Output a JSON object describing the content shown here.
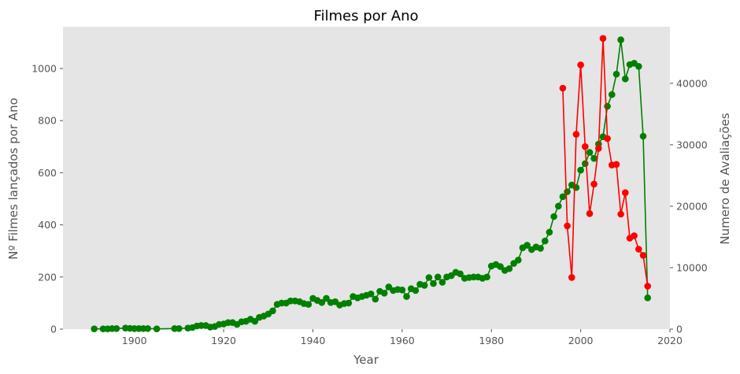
{
  "chart_data": {
    "type": "line",
    "title": "Filmes por Ano",
    "xlabel": "Year",
    "ylabel_left": "Nº Filmes lançados por Ano",
    "ylabel_right": "Numero de Avaliações",
    "xlim": [
      1884,
      2020
    ],
    "ylim_left": [
      0,
      1160
    ],
    "ylim_right": [
      0,
      49200
    ],
    "x_ticks": [
      1900,
      1920,
      1940,
      1960,
      1980,
      2000,
      2020
    ],
    "y_left_ticks": [
      0,
      200,
      400,
      600,
      800,
      1000
    ],
    "y_right_ticks": [
      0,
      10000,
      20000,
      30000,
      40000
    ],
    "grid": false,
    "background": "#e5e5e5",
    "series": [
      {
        "axis": "left",
        "color": "#008000",
        "points": [
          [
            1891,
            1
          ],
          [
            1893,
            1
          ],
          [
            1894,
            1
          ],
          [
            1895,
            2
          ],
          [
            1896,
            2
          ],
          [
            1898,
            4
          ],
          [
            1899,
            3
          ],
          [
            1900,
            2
          ],
          [
            1901,
            2
          ],
          [
            1902,
            2
          ],
          [
            1903,
            2
          ],
          [
            1905,
            1
          ],
          [
            1909,
            2
          ],
          [
            1910,
            2
          ],
          [
            1912,
            4
          ],
          [
            1913,
            6
          ],
          [
            1914,
            12
          ],
          [
            1915,
            14
          ],
          [
            1916,
            14
          ],
          [
            1917,
            8
          ],
          [
            1918,
            10
          ],
          [
            1919,
            18
          ],
          [
            1920,
            20
          ],
          [
            1921,
            25
          ],
          [
            1922,
            25
          ],
          [
            1923,
            18
          ],
          [
            1924,
            28
          ],
          [
            1925,
            30
          ],
          [
            1926,
            38
          ],
          [
            1927,
            30
          ],
          [
            1928,
            45
          ],
          [
            1929,
            50
          ],
          [
            1930,
            58
          ],
          [
            1931,
            70
          ],
          [
            1932,
            95
          ],
          [
            1933,
            100
          ],
          [
            1934,
            100
          ],
          [
            1935,
            108
          ],
          [
            1936,
            108
          ],
          [
            1937,
            105
          ],
          [
            1938,
            98
          ],
          [
            1939,
            95
          ],
          [
            1940,
            118
          ],
          [
            1941,
            110
          ],
          [
            1942,
            102
          ],
          [
            1943,
            118
          ],
          [
            1944,
            102
          ],
          [
            1945,
            105
          ],
          [
            1946,
            92
          ],
          [
            1947,
            98
          ],
          [
            1948,
            100
          ],
          [
            1949,
            125
          ],
          [
            1950,
            120
          ],
          [
            1951,
            125
          ],
          [
            1952,
            130
          ],
          [
            1953,
            135
          ],
          [
            1954,
            115
          ],
          [
            1955,
            145
          ],
          [
            1956,
            138
          ],
          [
            1957,
            162
          ],
          [
            1958,
            148
          ],
          [
            1959,
            152
          ],
          [
            1960,
            150
          ],
          [
            1961,
            125
          ],
          [
            1962,
            155
          ],
          [
            1963,
            148
          ],
          [
            1964,
            172
          ],
          [
            1965,
            168
          ],
          [
            1966,
            198
          ],
          [
            1967,
            175
          ],
          [
            1968,
            200
          ],
          [
            1969,
            180
          ],
          [
            1970,
            200
          ],
          [
            1971,
            205
          ],
          [
            1972,
            218
          ],
          [
            1973,
            212
          ],
          [
            1974,
            195
          ],
          [
            1975,
            198
          ],
          [
            1976,
            200
          ],
          [
            1977,
            200
          ],
          [
            1978,
            195
          ],
          [
            1979,
            200
          ],
          [
            1980,
            242
          ],
          [
            1981,
            248
          ],
          [
            1982,
            240
          ],
          [
            1983,
            225
          ],
          [
            1984,
            232
          ],
          [
            1985,
            252
          ],
          [
            1986,
            265
          ],
          [
            1987,
            312
          ],
          [
            1988,
            322
          ],
          [
            1989,
            305
          ],
          [
            1990,
            315
          ],
          [
            1991,
            310
          ],
          [
            1992,
            338
          ],
          [
            1993,
            372
          ],
          [
            1994,
            432
          ],
          [
            1995,
            472
          ],
          [
            1996,
            508
          ],
          [
            1997,
            527
          ],
          [
            1998,
            553
          ],
          [
            1999,
            543
          ],
          [
            2000,
            610
          ],
          [
            2001,
            635
          ],
          [
            2002,
            678
          ],
          [
            2003,
            655
          ],
          [
            2004,
            710
          ],
          [
            2005,
            738
          ],
          [
            2006,
            855
          ],
          [
            2007,
            900
          ],
          [
            2008,
            978
          ],
          [
            2009,
            1110
          ],
          [
            2010,
            960
          ],
          [
            2011,
            1015
          ],
          [
            2012,
            1020
          ],
          [
            2013,
            1008
          ],
          [
            2014,
            740
          ],
          [
            2015,
            120
          ]
        ]
      },
      {
        "axis": "right",
        "color": "#ff0000",
        "points": [
          [
            1996,
            39200
          ],
          [
            1997,
            16800
          ],
          [
            1998,
            8400
          ],
          [
            1999,
            31700
          ],
          [
            2000,
            43000
          ],
          [
            2001,
            29700
          ],
          [
            2002,
            18800
          ],
          [
            2003,
            23600
          ],
          [
            2004,
            29400
          ],
          [
            2005,
            47300
          ],
          [
            2006,
            31000
          ],
          [
            2007,
            26700
          ],
          [
            2008,
            26800
          ],
          [
            2009,
            18700
          ],
          [
            2010,
            22200
          ],
          [
            2011,
            14800
          ],
          [
            2012,
            15200
          ],
          [
            2013,
            13000
          ],
          [
            2014,
            12000
          ],
          [
            2015,
            7000
          ]
        ]
      }
    ]
  }
}
